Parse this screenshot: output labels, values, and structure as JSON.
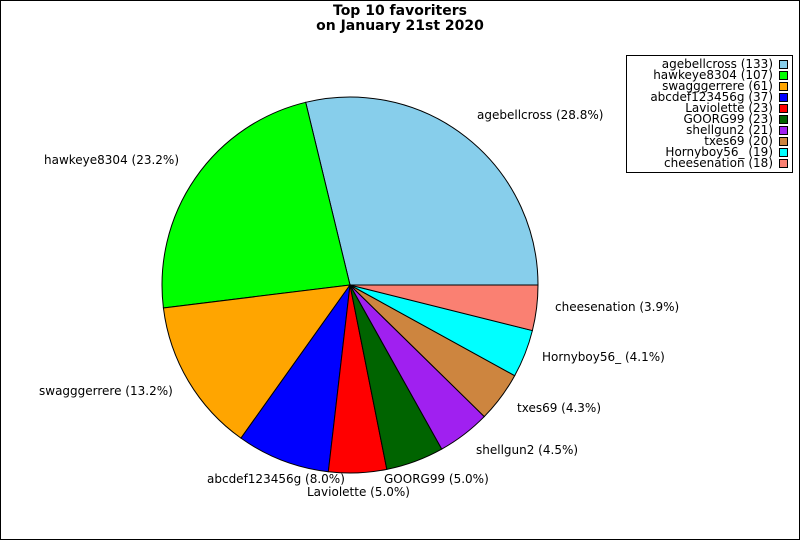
{
  "chart_data": {
    "type": "pie",
    "title_lines": [
      "Top 10 favoriters",
      "on January 21st 2020"
    ],
    "slices": [
      {
        "name": "agebellcross",
        "value": 133,
        "percent_label": "agebellcross (28.8%)",
        "legend_label": "agebellcross (133)",
        "color": "#87ceeb"
      },
      {
        "name": "hawkeye8304",
        "value": 107,
        "percent_label": "hawkeye8304 (23.2%)",
        "legend_label": "hawkeye8304 (107)",
        "color": "#00ff00"
      },
      {
        "name": "swagggerrere",
        "value": 61,
        "percent_label": "swagggerrere (13.2%)",
        "legend_label": "swagggerrere (61)",
        "color": "#ffa500"
      },
      {
        "name": "abcdef123456g",
        "value": 37,
        "percent_label": "abcdef123456g (8.0%)",
        "legend_label": "abcdef123456g (37)",
        "color": "#0000ff"
      },
      {
        "name": "Laviolette",
        "value": 23,
        "percent_label": "Laviolette (5.0%)",
        "legend_label": "Laviolette (23)",
        "color": "#ff0000"
      },
      {
        "name": "GOORG99",
        "value": 23,
        "percent_label": "GOORG99 (5.0%)",
        "legend_label": "GOORG99 (23)",
        "color": "#006400"
      },
      {
        "name": "shellgun2",
        "value": 21,
        "percent_label": "shellgun2 (4.5%)",
        "legend_label": "shellgun2 (21)",
        "color": "#a020f0"
      },
      {
        "name": "txes69",
        "value": 20,
        "percent_label": "txes69 (4.3%)",
        "legend_label": "txes69 (20)",
        "color": "#cd853f"
      },
      {
        "name": "Hornyboy56_",
        "value": 19,
        "percent_label": "Hornyboy56_ (4.1%)",
        "legend_label": "Hornyboy56_ (19)",
        "color": "#00ffff"
      },
      {
        "name": "cheesenation",
        "value": 18,
        "percent_label": "cheesenation (3.9%)",
        "legend_label": "cheesenation (18)",
        "color": "#fa8072"
      }
    ],
    "start_angle_deg": 0,
    "direction": "counterclockwise",
    "legend_position": "top-right"
  }
}
